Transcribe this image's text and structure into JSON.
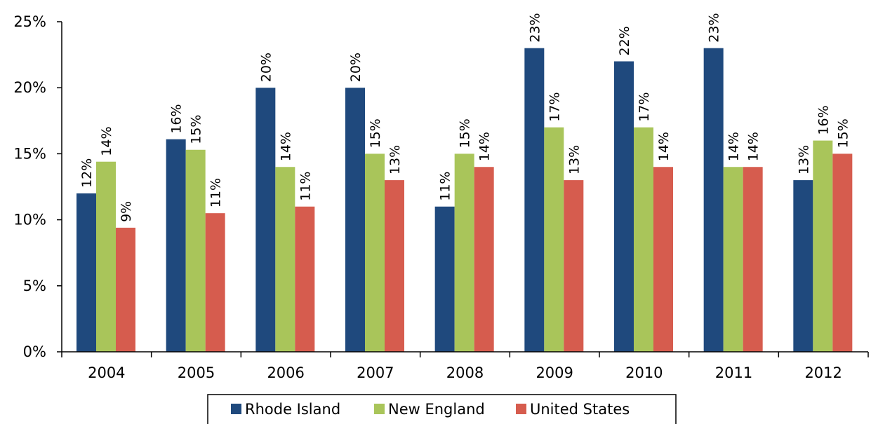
{
  "chart_data": {
    "type": "bar",
    "title": "",
    "xlabel": "",
    "ylabel": "",
    "categories": [
      "2004",
      "2005",
      "2006",
      "2007",
      "2008",
      "2009",
      "2010",
      "2011",
      "2012"
    ],
    "series": [
      {
        "name": "Rhode Island",
        "color": "#1f497d",
        "values": [
          12.0,
          16.1,
          20.0,
          20.0,
          11.0,
          23.0,
          22.0,
          23.0,
          13.0
        ],
        "labels": [
          "12%",
          "16%",
          "20%",
          "20%",
          "11%",
          "23%",
          "22%",
          "23%",
          "13%"
        ]
      },
      {
        "name": "New England",
        "color": "#a9c55a",
        "values": [
          14.4,
          15.3,
          14.0,
          15.0,
          15.0,
          17.0,
          17.0,
          14.0,
          16.0
        ],
        "labels": [
          "14%",
          "15%",
          "14%",
          "15%",
          "15%",
          "17%",
          "17%",
          "14%",
          "16%"
        ]
      },
      {
        "name": "United States",
        "color": "#d65c4e",
        "values": [
          9.4,
          10.5,
          11.0,
          13.0,
          14.0,
          13.0,
          14.0,
          14.0,
          15.0
        ],
        "labels": [
          "9%",
          "11%",
          "11%",
          "13%",
          "14%",
          "13%",
          "14%",
          "14%",
          "15%"
        ]
      }
    ],
    "ylim": [
      0,
      25
    ],
    "yticks": [
      0,
      5,
      10,
      15,
      20,
      25
    ],
    "ytick_labels": [
      "0%",
      "5%",
      "10%",
      "15%",
      "20%",
      "25%"
    ],
    "grid": false,
    "legend_position": "bottom"
  }
}
